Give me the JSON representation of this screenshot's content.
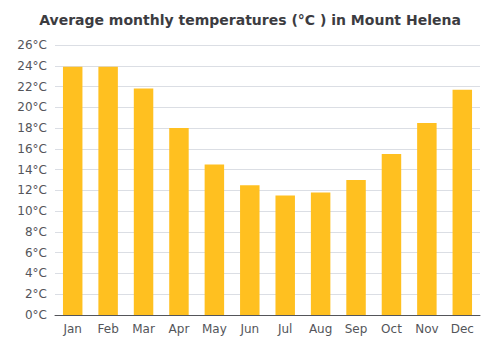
{
  "chart_data": {
    "type": "bar",
    "title": "Average monthly temperatures (°C ) in Mount Helena",
    "categories": [
      "Jan",
      "Feb",
      "Mar",
      "Apr",
      "May",
      "Jun",
      "Jul",
      "Aug",
      "Sep",
      "Oct",
      "Nov",
      "Dec"
    ],
    "values": [
      23.9,
      23.9,
      21.8,
      18.0,
      14.5,
      12.5,
      11.5,
      11.8,
      13.0,
      15.5,
      18.5,
      21.7
    ],
    "color": "#FFC020",
    "ylim": [
      0,
      26
    ],
    "yticks": [
      {
        "value": 0,
        "label": "0°C"
      },
      {
        "value": 2,
        "label": "2°C"
      },
      {
        "value": 4,
        "label": "4°C"
      },
      {
        "value": 6,
        "label": "6°C"
      },
      {
        "value": 8,
        "label": "8°C"
      },
      {
        "value": 10,
        "label": "10°C"
      },
      {
        "value": 12,
        "label": "12°C"
      },
      {
        "value": 14,
        "label": "14°C"
      },
      {
        "value": 16,
        "label": "16°C"
      },
      {
        "value": 18,
        "label": "18°C"
      },
      {
        "value": 20,
        "label": "20°C"
      },
      {
        "value": 22,
        "label": "22°C"
      },
      {
        "value": 24,
        "label": "24°C"
      },
      {
        "value": 26,
        "label": "26°C"
      }
    ],
    "grid": true
  }
}
